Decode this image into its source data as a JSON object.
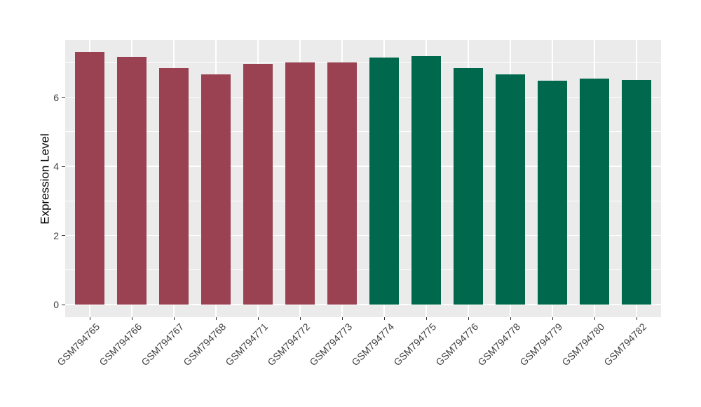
{
  "figure": {
    "background_color": "#FFFFFF"
  },
  "chart_data": {
    "type": "bar",
    "title": "",
    "xlabel": "",
    "ylabel": "Expression Level",
    "categories": [
      "GSM794765",
      "GSM794766",
      "GSM794767",
      "GSM794768",
      "GSM794771",
      "GSM794772",
      "GSM794773",
      "GSM794774",
      "GSM794775",
      "GSM794776",
      "GSM794778",
      "GSM794779",
      "GSM794780",
      "GSM794782"
    ],
    "values": [
      7.3,
      7.16,
      6.84,
      6.66,
      6.97,
      7.0,
      7.0,
      7.15,
      7.18,
      6.85,
      6.67,
      6.48,
      6.53,
      6.5
    ],
    "bar_colors": [
      "#9A4152",
      "#9A4152",
      "#9A4152",
      "#9A4152",
      "#9A4152",
      "#9A4152",
      "#9A4152",
      "#00694D",
      "#00694D",
      "#00694D",
      "#00694D",
      "#00694D",
      "#00694D",
      "#00694D"
    ],
    "group_colors": {
      "left_group": "#9A4152",
      "right_group": "#00694D"
    },
    "yticks": [
      0,
      2,
      4,
      6
    ],
    "minor_yticks": [
      1,
      3,
      5,
      7
    ],
    "ylim": [
      0,
      7.66
    ],
    "grid": true,
    "legend_position": "none",
    "panel_background": "#EBEBEB",
    "grid_color": "#FFFFFF",
    "axis_text_color": "#404040",
    "x_label_angle_deg": 45
  }
}
